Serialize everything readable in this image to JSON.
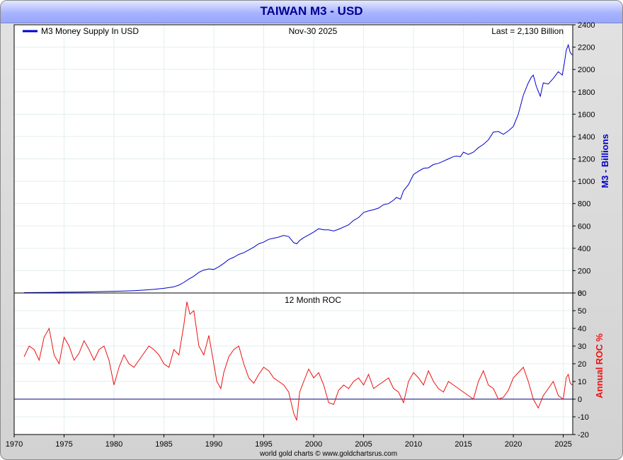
{
  "title": "TAIWAN M3 - USD",
  "footer": "world gold charts © www.goldchartsrus.com",
  "colors": {
    "m3_line": "#0000cc",
    "roc_line": "#ee1111",
    "zero_line": "#000080",
    "m3_axis_label": "#0000cc",
    "roc_axis_label": "#ee1111"
  },
  "chart_data": [
    {
      "type": "line",
      "legend": "M3 Money Supply In USD",
      "date_label": "Nov-30  2025",
      "last_label": "Last = 2,130 Billion",
      "ylabel": "M3 - Billions",
      "ylim": [
        0,
        2400
      ],
      "yticks": [
        0,
        200,
        400,
        600,
        800,
        1000,
        1200,
        1400,
        1600,
        1800,
        2000,
        2200,
        2400
      ],
      "xlim": [
        1970,
        2025.95
      ],
      "grid": true,
      "series": [
        {
          "name": "M3 Money Supply In USD",
          "x": [
            1971.0,
            1972.0,
            1973.0,
            1974.0,
            1975.0,
            1976.0,
            1977.0,
            1978.0,
            1979.0,
            1980.0,
            1981.0,
            1982.0,
            1983.0,
            1984.0,
            1985.0,
            1985.5,
            1986.0,
            1986.5,
            1987.0,
            1987.5,
            1988.0,
            1988.5,
            1989.0,
            1989.5,
            1990.0,
            1990.5,
            1991.0,
            1991.5,
            1992.0,
            1992.5,
            1993.0,
            1993.5,
            1994.0,
            1994.5,
            1995.0,
            1995.5,
            1996.0,
            1996.5,
            1997.0,
            1997.5,
            1998.0,
            1998.3,
            1998.6,
            1999.0,
            1999.5,
            2000.0,
            2000.5,
            2001.0,
            2001.5,
            2002.0,
            2002.5,
            2003.0,
            2003.5,
            2004.0,
            2004.5,
            2005.0,
            2005.5,
            2006.0,
            2006.5,
            2007.0,
            2007.5,
            2008.0,
            2008.3,
            2008.7,
            2009.0,
            2009.5,
            2010.0,
            2010.5,
            2011.0,
            2011.5,
            2012.0,
            2012.5,
            2013.0,
            2013.5,
            2014.0,
            2014.3,
            2014.7,
            2015.0,
            2015.5,
            2016.0,
            2016.5,
            2017.0,
            2017.5,
            2018.0,
            2018.5,
            2019.0,
            2019.5,
            2020.0,
            2020.5,
            2021.0,
            2021.5,
            2021.8,
            2022.0,
            2022.3,
            2022.7,
            2023.0,
            2023.5,
            2024.0,
            2024.5,
            2024.9,
            2025.1,
            2025.3,
            2025.5,
            2025.7,
            2025.9
          ],
          "values": [
            3,
            4,
            5,
            6,
            7,
            8,
            9,
            11,
            13,
            15,
            18,
            21,
            26,
            32,
            42,
            48,
            55,
            70,
            95,
            125,
            150,
            185,
            205,
            215,
            210,
            235,
            265,
            300,
            320,
            345,
            360,
            385,
            410,
            440,
            455,
            480,
            490,
            500,
            515,
            505,
            450,
            440,
            470,
            495,
            520,
            545,
            575,
            565,
            565,
            555,
            570,
            590,
            610,
            650,
            675,
            720,
            735,
            745,
            760,
            790,
            800,
            830,
            855,
            840,
            915,
            970,
            1060,
            1090,
            1115,
            1120,
            1150,
            1160,
            1180,
            1200,
            1220,
            1225,
            1220,
            1260,
            1240,
            1260,
            1300,
            1330,
            1370,
            1440,
            1445,
            1420,
            1450,
            1490,
            1600,
            1770,
            1880,
            1930,
            1950,
            1850,
            1760,
            1880,
            1870,
            1920,
            1980,
            1950,
            2050,
            2170,
            2220,
            2150,
            2130
          ]
        }
      ]
    },
    {
      "type": "line",
      "title": "12 Month ROC",
      "ylabel": "Annual ROC %",
      "ylim": [
        -20,
        60
      ],
      "yticks": [
        -20,
        -10,
        0,
        10,
        20,
        30,
        40,
        50,
        60
      ],
      "xlim": [
        1970,
        2025.95
      ],
      "xticks": [
        1970,
        1975,
        1980,
        1985,
        1990,
        1995,
        2000,
        2005,
        2010,
        2015,
        2020,
        2025
      ],
      "grid": true,
      "series": [
        {
          "name": "12 Month ROC",
          "x": [
            1971.0,
            1971.5,
            1972.0,
            1972.5,
            1973.0,
            1973.5,
            1974.0,
            1974.5,
            1975.0,
            1975.5,
            1976.0,
            1976.5,
            1977.0,
            1977.5,
            1978.0,
            1978.5,
            1979.0,
            1979.5,
            1980.0,
            1980.5,
            1981.0,
            1981.5,
            1982.0,
            1982.5,
            1983.0,
            1983.5,
            1984.0,
            1984.5,
            1985.0,
            1985.5,
            1986.0,
            1986.5,
            1987.0,
            1987.3,
            1987.6,
            1988.0,
            1988.5,
            1989.0,
            1989.5,
            1990.0,
            1990.3,
            1990.7,
            1991.0,
            1991.5,
            1992.0,
            1992.5,
            1993.0,
            1993.5,
            1994.0,
            1994.5,
            1995.0,
            1995.5,
            1996.0,
            1996.5,
            1997.0,
            1997.5,
            1998.0,
            1998.3,
            1998.6,
            1999.0,
            1999.5,
            2000.0,
            2000.5,
            2001.0,
            2001.5,
            2002.0,
            2002.5,
            2003.0,
            2003.5,
            2004.0,
            2004.5,
            2005.0,
            2005.5,
            2006.0,
            2006.5,
            2007.0,
            2007.5,
            2008.0,
            2008.5,
            2009.0,
            2009.5,
            2010.0,
            2010.5,
            2011.0,
            2011.5,
            2012.0,
            2012.5,
            2013.0,
            2013.5,
            2014.0,
            2014.5,
            2015.0,
            2015.5,
            2016.0,
            2016.5,
            2017.0,
            2017.5,
            2018.0,
            2018.5,
            2019.0,
            2019.5,
            2020.0,
            2020.5,
            2021.0,
            2021.5,
            2022.0,
            2022.5,
            2023.0,
            2023.5,
            2024.0,
            2024.5,
            2025.0,
            2025.3,
            2025.5,
            2025.7,
            2025.9
          ],
          "values": [
            24,
            30,
            28,
            22,
            35,
            40,
            25,
            20,
            35,
            30,
            22,
            26,
            33,
            28,
            22,
            28,
            30,
            22,
            8,
            18,
            25,
            20,
            18,
            22,
            26,
            30,
            28,
            25,
            20,
            18,
            28,
            25,
            42,
            55,
            48,
            50,
            30,
            25,
            36,
            20,
            10,
            6,
            15,
            24,
            28,
            30,
            20,
            12,
            9,
            14,
            18,
            16,
            12,
            10,
            8,
            4,
            -8,
            -12,
            4,
            10,
            17,
            12,
            15,
            8,
            -2,
            -3,
            5,
            8,
            6,
            10,
            12,
            8,
            14,
            6,
            8,
            10,
            12,
            6,
            4,
            -2,
            10,
            15,
            12,
            8,
            16,
            10,
            6,
            4,
            10,
            8,
            6,
            4,
            2,
            0,
            10,
            16,
            8,
            6,
            0,
            1,
            5,
            12,
            15,
            18,
            10,
            0,
            -5,
            2,
            6,
            10,
            2,
            0,
            12,
            14,
            9,
            8
          ]
        }
      ]
    }
  ]
}
